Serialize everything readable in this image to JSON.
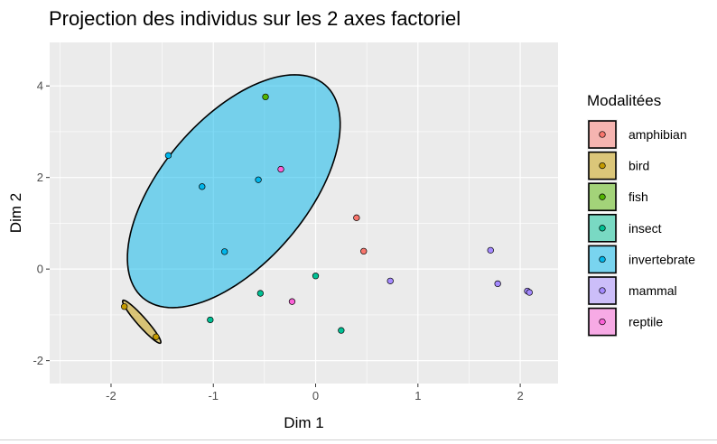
{
  "chart_data": {
    "type": "scatter",
    "title": "Projection des individus sur les 2 axes factoriel",
    "xlabel": "Dim 1",
    "ylabel": "Dim 2",
    "xlim": [
      -2.6,
      2.37
    ],
    "ylim": [
      -2.5,
      4.95
    ],
    "x_ticks": [
      -2,
      -1,
      0,
      1,
      2
    ],
    "y_ticks": [
      -2,
      0,
      2,
      4
    ],
    "grid": true,
    "legend": {
      "title": "Modalitées",
      "position": "right"
    },
    "series": [
      {
        "name": "amphibian",
        "color": "#F8766D",
        "points": [
          [
            0.4,
            1.12
          ],
          [
            0.47,
            0.39
          ]
        ]
      },
      {
        "name": "bird",
        "color": "#C49A00",
        "points": [
          [
            -1.87,
            -0.82
          ],
          [
            -1.56,
            -1.48
          ]
        ]
      },
      {
        "name": "fish",
        "color": "#53B400",
        "points": [
          [
            -0.49,
            3.76
          ]
        ]
      },
      {
        "name": "insect",
        "color": "#00C094",
        "points": [
          [
            -1.03,
            -1.11
          ],
          [
            -0.54,
            -0.53
          ],
          [
            0.0,
            -0.15
          ],
          [
            0.25,
            -1.34
          ]
        ]
      },
      {
        "name": "invertebrate",
        "color": "#00B6EB",
        "points": [
          [
            -1.44,
            2.48
          ],
          [
            -1.11,
            1.8
          ],
          [
            -0.56,
            1.95
          ],
          [
            -0.89,
            0.38
          ]
        ]
      },
      {
        "name": "mammal",
        "color": "#A58AFF",
        "points": [
          [
            0.73,
            -0.26
          ],
          [
            1.71,
            0.41
          ],
          [
            1.78,
            -0.32
          ],
          [
            2.07,
            -0.48
          ],
          [
            2.09,
            -0.51
          ]
        ]
      },
      {
        "name": "reptile",
        "color": "#FB61D7",
        "points": [
          [
            -0.34,
            2.18
          ],
          [
            -0.23,
            -0.71
          ]
        ]
      }
    ],
    "ellipses": [
      {
        "group": "invertebrate",
        "color": "#00B6EB",
        "center": [
          -0.8,
          1.7
        ],
        "semi_axes": [
          1.58,
          3.06
        ],
        "angle_deg": -40.5
      },
      {
        "group": "bird",
        "color": "#C49A00",
        "center": [
          -1.7,
          -1.15
        ],
        "semi_axes": [
          0.62,
          0.1
        ],
        "angle_deg": -48.5
      },
      {
        "group": "mammal",
        "color": "#A58AFF",
        "center": [
          2.08,
          -0.495
        ],
        "semi_axes": [
          0.07,
          0.012
        ],
        "angle_deg": -28
      }
    ]
  }
}
